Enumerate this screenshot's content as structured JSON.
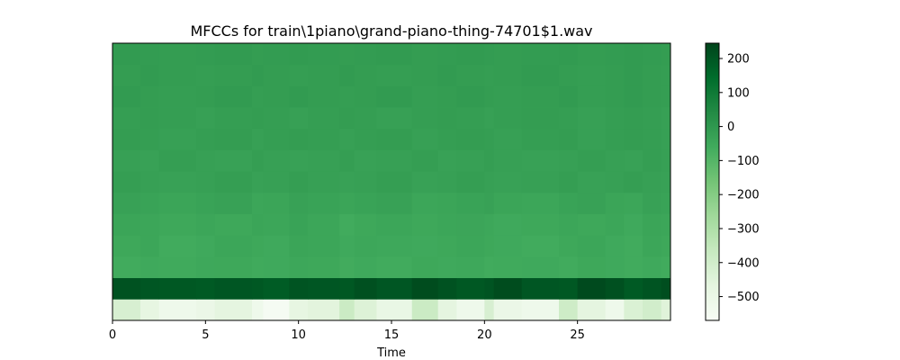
{
  "chart_data": {
    "type": "heatmap",
    "title": "MFCCs for train\\1piano\\grand-piano-thing-74701$1.wav",
    "xlabel": "Time",
    "ylabel": "",
    "xlim": [
      0,
      30
    ],
    "x_ticks": [
      0,
      5,
      10,
      15,
      20,
      25
    ],
    "x_tick_labels": [
      "0",
      "5",
      "10",
      "15",
      "20",
      "25"
    ],
    "n_coefficients": 13,
    "time_segments_start": [
      0,
      1.5,
      2.5,
      4.5,
      5.5,
      7.5,
      8.1,
      9.5,
      10.5,
      12.2,
      13.0,
      14.2,
      16.1,
      17.5,
      18.5,
      20.0,
      20.5,
      22.0,
      24.0,
      25.0,
      26.5,
      27.5,
      28.5,
      29.5
    ],
    "matrix": [
      [
        -420,
        -480,
        -520,
        -500,
        -470,
        -520,
        -560,
        -480,
        -460,
        -380,
        -440,
        -490,
        -380,
        -470,
        -520,
        -420,
        -500,
        -520,
        -390,
        -470,
        -520,
        -430,
        -400,
        -450
      ],
      [
        210,
        200,
        195,
        190,
        200,
        195,
        185,
        205,
        200,
        195,
        215,
        200,
        225,
        210,
        195,
        205,
        225,
        200,
        195,
        230,
        215,
        190,
        205,
        220
      ],
      [
        -60,
        -55,
        -58,
        -52,
        -50,
        -58,
        -55,
        -48,
        -50,
        -62,
        -55,
        -60,
        -50,
        -55,
        -52,
        -60,
        -58,
        -55,
        -60,
        -50,
        -55,
        -60,
        -55,
        -60
      ],
      [
        -50,
        -45,
        -60,
        -55,
        -45,
        -50,
        -55,
        -40,
        -45,
        -55,
        -48,
        -52,
        -55,
        -50,
        -45,
        -50,
        -55,
        -60,
        -50,
        -45,
        -55,
        -60,
        -45,
        -50
      ],
      [
        -40,
        -45,
        -50,
        -45,
        -50,
        -40,
        -45,
        -35,
        -45,
        -60,
        -50,
        -45,
        -50,
        -45,
        -42,
        -48,
        -55,
        -50,
        -45,
        -50,
        -45,
        -55,
        -40,
        -45
      ],
      [
        -30,
        -35,
        -40,
        -35,
        -30,
        -45,
        -40,
        -30,
        -35,
        -40,
        -35,
        -30,
        -45,
        -40,
        -35,
        -30,
        -40,
        -45,
        -35,
        -30,
        -40,
        -45,
        -30,
        -35
      ],
      [
        -20,
        -25,
        -30,
        -25,
        -20,
        -30,
        -25,
        -20,
        -25,
        -30,
        -25,
        -20,
        -30,
        -25,
        -20,
        -25,
        -30,
        -25,
        -20,
        -30,
        -25,
        -20,
        -25,
        -30
      ],
      [
        -25,
        -30,
        -20,
        -25,
        -30,
        -20,
        -25,
        -30,
        -25,
        -20,
        -30,
        -25,
        -20,
        -30,
        -25,
        -20,
        -25,
        -30,
        -25,
        -20,
        -25,
        -30,
        -20,
        -25
      ],
      [
        -15,
        -20,
        -25,
        -20,
        -15,
        -25,
        -20,
        -15,
        -20,
        -25,
        -20,
        -15,
        -25,
        -20,
        -15,
        -20,
        -25,
        -20,
        -15,
        -25,
        -20,
        -15,
        -20,
        -25
      ],
      [
        -20,
        -15,
        -20,
        -25,
        -20,
        -15,
        -20,
        -25,
        -20,
        -15,
        -20,
        -25,
        -20,
        -15,
        -20,
        -25,
        -20,
        -15,
        -20,
        -25,
        -20,
        -15,
        -20,
        -25
      ],
      [
        -10,
        -15,
        -20,
        -15,
        -10,
        -20,
        -15,
        -10,
        -15,
        -20,
        -15,
        -10,
        -20,
        -15,
        -10,
        -15,
        -20,
        -15,
        -10,
        -20,
        -15,
        -10,
        -15,
        -20
      ],
      [
        -15,
        -10,
        -15,
        -20,
        -15,
        -10,
        -15,
        -20,
        -15,
        -10,
        -15,
        -20,
        -15,
        -10,
        -15,
        -20,
        -15,
        -10,
        -15,
        -20,
        -15,
        -10,
        -15,
        -20
      ],
      [
        -10,
        -12,
        -15,
        -12,
        -10,
        -15,
        -12,
        -10,
        -12,
        -15,
        -12,
        -10,
        -15,
        -12,
        -10,
        -12,
        -15,
        -12,
        -10,
        -15,
        -12,
        -10,
        -12,
        -15
      ]
    ],
    "colorbar": {
      "cmap": "Greens",
      "vmin": -570,
      "vmax": 245,
      "ticks": [
        200,
        100,
        0,
        -100,
        -200,
        -300,
        -400,
        -500
      ],
      "tick_labels": [
        "200",
        "100",
        "0",
        "−100",
        "−200",
        "−300",
        "−400",
        "−500"
      ]
    },
    "grid": false,
    "colors": {
      "cmap_low": "#f7fcf5",
      "cmap_high": "#00441b"
    }
  }
}
